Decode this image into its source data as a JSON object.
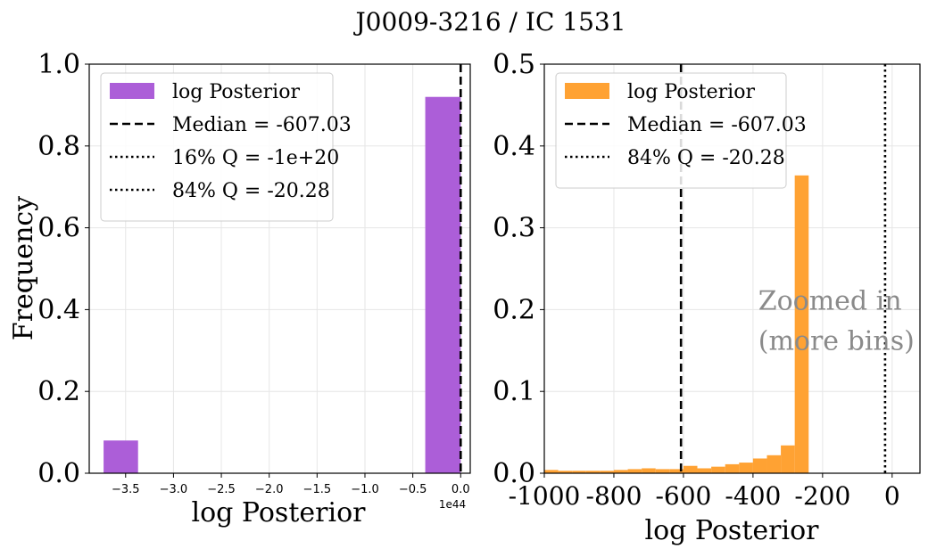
{
  "figure": {
    "title": "J0009-3216 / IC 1531"
  },
  "colors": {
    "left_bar": "#ac5ed8",
    "right_bar": "#ffa233",
    "grid": "#e6e6e6",
    "line": "#000000",
    "annotation": "#8a8a8a"
  },
  "chart_data": [
    {
      "type": "bar",
      "panel": "left",
      "xlabel": "log Posterior",
      "ylabel": "Frequency",
      "x_offset_label": "1e44",
      "xlim": [
        -3.88,
        0.1
      ],
      "ylim": [
        0,
        1.0
      ],
      "grid": true,
      "xticks": [
        -3.5,
        -3.0,
        -2.5,
        -2.0,
        -1.5,
        -1.0,
        -0.5,
        0.0
      ],
      "xtick_labels": [
        "−3.5",
        "−3.0",
        "−2.5",
        "−2.0",
        "−1.5",
        "−1.0",
        "−0.5",
        "0.0"
      ],
      "yticks": [
        0.0,
        0.2,
        0.4,
        0.6,
        0.8,
        1.0
      ],
      "ytick_labels": [
        "0.0",
        "0.2",
        "0.4",
        "0.6",
        "0.8",
        "1.0"
      ],
      "bins": [
        {
          "x0": -3.73,
          "x1": -3.37,
          "value": 0.08
        },
        {
          "x0": -0.37,
          "x1": 0.0,
          "value": 0.92
        }
      ],
      "vlines": [
        {
          "x": 0.0,
          "style": "dashed",
          "label": "Median = -607.03"
        }
      ],
      "legend": {
        "position": "upper left",
        "entries": [
          {
            "label": "log Posterior",
            "kind": "patch"
          },
          {
            "label": "Median = -607.03",
            "kind": "dashed"
          },
          {
            "label": "16% Q = -1e+20",
            "kind": "dotted"
          },
          {
            "label": "84% Q = -20.28",
            "kind": "dotted"
          }
        ]
      }
    },
    {
      "type": "bar",
      "panel": "right",
      "xlabel": "log Posterior",
      "ylabel": "",
      "xlim": [
        -1000,
        80
      ],
      "ylim": [
        0,
        0.5
      ],
      "grid": true,
      "xticks": [
        -1000,
        -800,
        -600,
        -400,
        -200,
        0
      ],
      "xtick_labels": [
        "-1000",
        "-800",
        "-600",
        "-400",
        "-200",
        "0"
      ],
      "yticks": [
        0.0,
        0.1,
        0.2,
        0.3,
        0.4,
        0.5
      ],
      "ytick_labels": [
        "0.0",
        "0.1",
        "0.2",
        "0.3",
        "0.4",
        "0.5"
      ],
      "bin_start": -1000,
      "bin_width": 40,
      "values": [
        0.004,
        0.003,
        0.003,
        0.003,
        0.003,
        0.004,
        0.005,
        0.006,
        0.005,
        0.005,
        0.009,
        0.006,
        0.008,
        0.011,
        0.013,
        0.018,
        0.022,
        0.034,
        0.364
      ],
      "vlines": [
        {
          "x": -607.03,
          "style": "dashed",
          "label": "Median = -607.03"
        },
        {
          "x": -20.28,
          "style": "dotted",
          "label": "84% Q = -20.28"
        }
      ],
      "annotation": {
        "lines": [
          "Zoomed in",
          "(more bins)"
        ],
        "x": -385,
        "y": 0.2
      },
      "legend": {
        "position": "upper left",
        "entries": [
          {
            "label": "log Posterior",
            "kind": "patch"
          },
          {
            "label": "Median = -607.03",
            "kind": "dashed"
          },
          {
            "label": "84% Q = -20.28",
            "kind": "dotted"
          }
        ]
      }
    }
  ]
}
